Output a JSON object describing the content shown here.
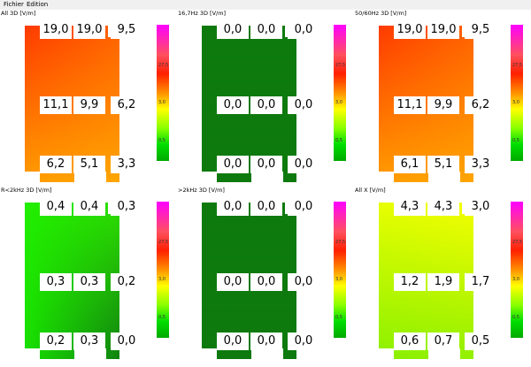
{
  "menu": {
    "items": [
      "Fichier",
      "Edition"
    ]
  },
  "colorbar": {
    "ticks": [
      "27,5",
      "3,0",
      "0,5"
    ]
  },
  "panels": [
    {
      "title": "All 3D [V/m]",
      "values": [
        "19,0",
        "19,0",
        "9,5",
        "11,1",
        "9,9",
        "6,2",
        "6,2",
        "5,1",
        "3,3"
      ],
      "colors": {
        "tl": "#ff3000",
        "tr": "#ff5a00",
        "bl": "#ffa000",
        "br": "#ffa800"
      }
    },
    {
      "title": "16,7Hz 3D [V/m]",
      "values": [
        "0,0",
        "0,0",
        "0,0",
        "0,0",
        "0,0",
        "0,0",
        "0,0",
        "0,0",
        "0,0"
      ],
      "colors": {
        "tl": "#0e7a0e",
        "tr": "#0e7a0e",
        "bl": "#0e7a0e",
        "br": "#0e7a0e"
      }
    },
    {
      "title": "50/60Hz 3D [V/m]",
      "values": [
        "19,0",
        "19,0",
        "9,5",
        "11,1",
        "9,9",
        "6,2",
        "6,1",
        "5,1",
        "3,3"
      ],
      "colors": {
        "tl": "#ff3000",
        "tr": "#ff5a00",
        "bl": "#ffa000",
        "br": "#ffa800"
      }
    },
    {
      "title": "R<2kHz 3D [V/m]",
      "values": [
        "0,4",
        "0,4",
        "0,3",
        "0,3",
        "0,3",
        "0,2",
        "0,2",
        "0,3",
        "0,0"
      ],
      "colors": {
        "tl": "#22f000",
        "tr": "#30e800",
        "bl": "#18e000",
        "br": "#108010"
      }
    },
    {
      "title": ">2kHz 3D [V/m]",
      "values": [
        "0,0",
        "0,0",
        "0,0",
        "0,0",
        "0,0",
        "0,0",
        "0,0",
        "0,0",
        "0,0"
      ],
      "colors": {
        "tl": "#0e7a0e",
        "tr": "#0e7a0e",
        "bl": "#0e7a0e",
        "br": "#0e7a0e"
      }
    },
    {
      "title": "All X [V/m]",
      "values": [
        "4,3",
        "4,3",
        "3,0",
        "1,2",
        "1,9",
        "1,7",
        "0,6",
        "0,7",
        "0,5"
      ],
      "colors": {
        "tl": "#f0ff00",
        "tr": "#ffff00",
        "bl": "#88f000",
        "br": "#90f000"
      }
    }
  ]
}
